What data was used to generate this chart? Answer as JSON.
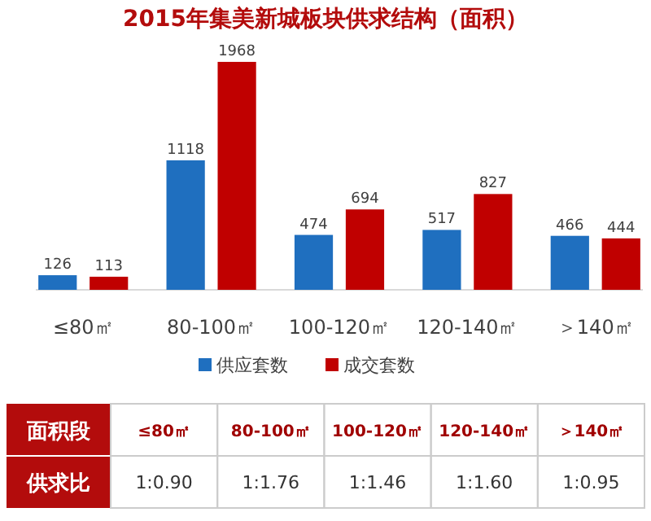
{
  "chart_data": {
    "type": "bar",
    "title": "2015年集美新城板块供求结构（面积）",
    "categories": [
      "≤80㎡",
      "80-100㎡",
      "100-120㎡",
      "120-140㎡",
      "＞140㎡"
    ],
    "series": [
      {
        "name": "供应套数",
        "color": "#1f6fbf",
        "values": [
          126,
          1118,
          474,
          517,
          466
        ]
      },
      {
        "name": "成交套数",
        "color": "#c00000",
        "values": [
          113,
          1968,
          694,
          827,
          444
        ]
      }
    ],
    "data_labels": true,
    "legend": "bottom",
    "annotations": [
      "面积段",
      "供求比",
      "1:0.90",
      "1:1.76",
      "1:1.46",
      "1:1.60",
      "1:0.95"
    ]
  }
}
